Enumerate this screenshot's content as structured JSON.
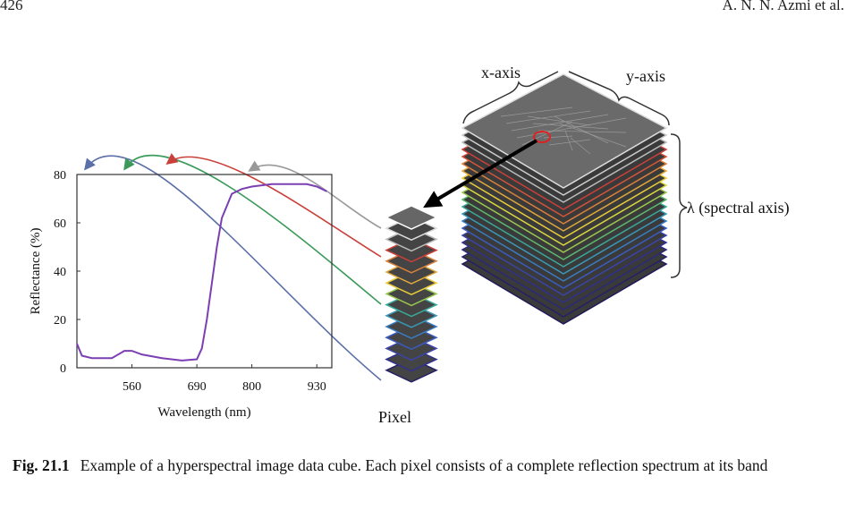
{
  "header": {
    "page": "426",
    "authors": "A. N. N. Azmi et al."
  },
  "figure": {
    "x_axis_label": "x-axis",
    "y_axis_label": "y-axis",
    "spectral_label": "λ (spectral axis)",
    "pixel_label": "Pixel"
  },
  "chart_data": {
    "type": "line",
    "x_label": "Wavelength (nm)",
    "y_label": "Reflectance (%)",
    "x": [
      450,
      460,
      480,
      520,
      545,
      560,
      580,
      620,
      660,
      690,
      700,
      710,
      720,
      730,
      740,
      760,
      780,
      800,
      840,
      880,
      910,
      930,
      950
    ],
    "values": [
      10,
      5,
      4,
      4,
      7,
      7,
      5.5,
      4,
      3,
      3.5,
      8,
      20,
      35,
      50,
      62,
      72,
      74,
      75,
      76,
      76,
      76,
      75,
      73
    ],
    "color": "#7b3fb3",
    "xlim": [
      450,
      960
    ],
    "xticks": [
      560,
      690,
      800,
      930
    ],
    "ylim": [
      0,
      80
    ],
    "yticks": [
      0,
      20,
      40,
      60,
      80
    ]
  },
  "caption": {
    "label": "Fig. 21.1",
    "text": "Example of a hyperspectral image data cube. Each pixel consists of a complete reflection spectrum at its band"
  }
}
